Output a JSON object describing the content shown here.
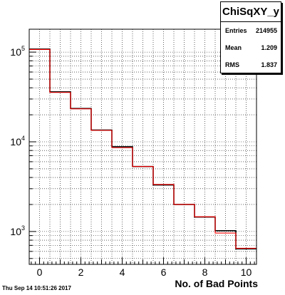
{
  "stats": {
    "title": "ChiSqXY_y",
    "rows": [
      {
        "label": "Entries",
        "value": "214955"
      },
      {
        "label": "Mean",
        "value": "1.209"
      },
      {
        "label": "RMS",
        "value": "1.837"
      }
    ]
  },
  "timestamp": "Thu Sep 14 10:51:26 2017",
  "chart_data": {
    "type": "histogram",
    "xlabel": "No. of Bad Points",
    "xlim": [
      -0.5,
      10.5
    ],
    "ylog": true,
    "ylim": [
      430,
      180000
    ],
    "x_ticks": [
      0,
      2,
      4,
      6,
      8,
      10
    ],
    "y_ticks": [
      {
        "value": 1000,
        "base": "10",
        "exp": "3"
      },
      {
        "value": 10000,
        "base": "10",
        "exp": "4"
      },
      {
        "value": 100000,
        "base": "10",
        "exp": "5"
      }
    ],
    "grid": true,
    "bin_edges": [
      -0.5,
      0.5,
      1.5,
      2.5,
      3.5,
      4.5,
      5.5,
      6.5,
      7.5,
      8.5,
      9.5,
      10.5
    ],
    "series": [
      {
        "color": "#000000",
        "values": [
          108000,
          36000,
          23500,
          13500,
          8800,
          5300,
          3300,
          2000,
          1450,
          1020,
          640
        ]
      },
      {
        "color": "#ff0000",
        "values": [
          107000,
          35500,
          23300,
          13400,
          8600,
          5300,
          3350,
          2000,
          1460,
          960,
          650
        ]
      }
    ]
  }
}
